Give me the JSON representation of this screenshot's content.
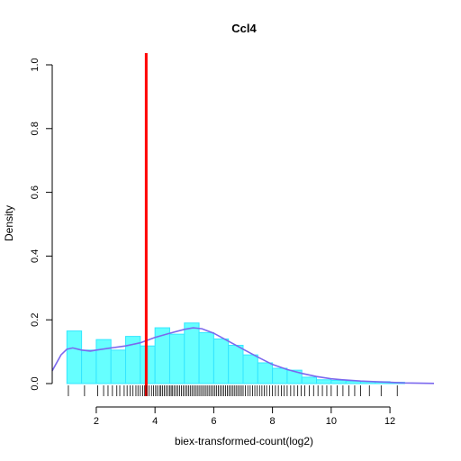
{
  "chart_data": {
    "type": "histogram",
    "title": "Ccl4",
    "xlabel": "biex-transformed-count(log2)",
    "ylabel": "Density",
    "xlim": [
      0.5,
      13.5
    ],
    "ylim": [
      0,
      1.0
    ],
    "x_ticks": [
      2,
      4,
      6,
      8,
      10,
      12
    ],
    "y_ticks": [
      0.0,
      0.2,
      0.4,
      0.6,
      0.8,
      1.0
    ],
    "x_tick_labels": [
      "2",
      "4",
      "6",
      "8",
      "10",
      "12"
    ],
    "y_tick_labels": [
      "0.0",
      "0.2",
      "0.4",
      "0.6",
      "0.8",
      "1.0"
    ],
    "bin_width": 0.5,
    "bins": [
      {
        "start": 1.0,
        "density": 0.165
      },
      {
        "start": 1.5,
        "density": 0.105
      },
      {
        "start": 2.0,
        "density": 0.138
      },
      {
        "start": 2.5,
        "density": 0.105
      },
      {
        "start": 3.0,
        "density": 0.148
      },
      {
        "start": 3.5,
        "density": 0.118
      },
      {
        "start": 4.0,
        "density": 0.175
      },
      {
        "start": 4.5,
        "density": 0.155
      },
      {
        "start": 5.0,
        "density": 0.19
      },
      {
        "start": 5.5,
        "density": 0.16
      },
      {
        "start": 6.0,
        "density": 0.14
      },
      {
        "start": 6.5,
        "density": 0.12
      },
      {
        "start": 7.0,
        "density": 0.09
      },
      {
        "start": 7.5,
        "density": 0.065
      },
      {
        "start": 8.0,
        "density": 0.048
      },
      {
        "start": 8.5,
        "density": 0.042
      },
      {
        "start": 9.0,
        "density": 0.02
      },
      {
        "start": 9.5,
        "density": 0.012
      },
      {
        "start": 10.0,
        "density": 0.01
      },
      {
        "start": 10.5,
        "density": 0.008
      },
      {
        "start": 11.0,
        "density": 0.006
      },
      {
        "start": 11.5,
        "density": 0.006
      },
      {
        "start": 12.0,
        "density": 0.004
      }
    ],
    "density_curve": {
      "x": [
        0.5,
        0.8,
        1.0,
        1.2,
        1.5,
        1.8,
        2.0,
        2.5,
        3.0,
        3.5,
        4.0,
        4.5,
        5.0,
        5.3,
        5.6,
        6.0,
        6.5,
        7.0,
        7.5,
        8.0,
        8.5,
        9.0,
        9.5,
        10.0,
        10.5,
        11.0,
        11.5,
        12.0,
        12.5,
        13.0,
        13.5
      ],
      "y": [
        0.04,
        0.09,
        0.108,
        0.112,
        0.105,
        0.102,
        0.105,
        0.112,
        0.118,
        0.128,
        0.145,
        0.158,
        0.17,
        0.175,
        0.172,
        0.158,
        0.133,
        0.108,
        0.083,
        0.06,
        0.044,
        0.032,
        0.022,
        0.015,
        0.011,
        0.008,
        0.006,
        0.004,
        0.002,
        0.001,
        0.0005
      ]
    },
    "vline_x": 3.7,
    "rug": [
      1.05,
      1.6,
      2.05,
      2.25,
      2.4,
      2.55,
      2.7,
      2.8,
      2.95,
      3.05,
      3.15,
      3.25,
      3.35,
      3.42,
      3.5,
      3.58,
      3.65,
      3.72,
      3.8,
      3.88,
      3.95,
      4.02,
      4.08,
      4.15,
      4.2,
      4.26,
      4.32,
      4.38,
      4.44,
      4.5,
      4.55,
      4.6,
      4.66,
      4.72,
      4.78,
      4.84,
      4.9,
      4.96,
      5.02,
      5.08,
      5.14,
      5.2,
      5.26,
      5.32,
      5.38,
      5.44,
      5.5,
      5.56,
      5.62,
      5.68,
      5.74,
      5.8,
      5.86,
      5.92,
      5.98,
      6.04,
      6.1,
      6.16,
      6.22,
      6.28,
      6.34,
      6.4,
      6.46,
      6.52,
      6.58,
      6.64,
      6.7,
      6.76,
      6.82,
      6.88,
      6.94,
      7.0,
      7.08,
      7.16,
      7.24,
      7.32,
      7.4,
      7.48,
      7.56,
      7.64,
      7.72,
      7.8,
      7.9,
      8.0,
      8.1,
      8.2,
      8.3,
      8.4,
      8.5,
      8.62,
      8.74,
      8.86,
      8.98,
      9.1,
      9.25,
      9.4,
      9.55,
      9.7,
      9.85,
      10.0,
      10.2,
      10.4,
      10.6,
      10.8,
      11.0,
      11.3,
      11.7,
      12.25
    ],
    "colors": {
      "bars": "#66ffff",
      "bar_border": "#33e6ff",
      "curve": "#7b68ee",
      "vline": "#ff0000",
      "rug": "#000000"
    }
  }
}
